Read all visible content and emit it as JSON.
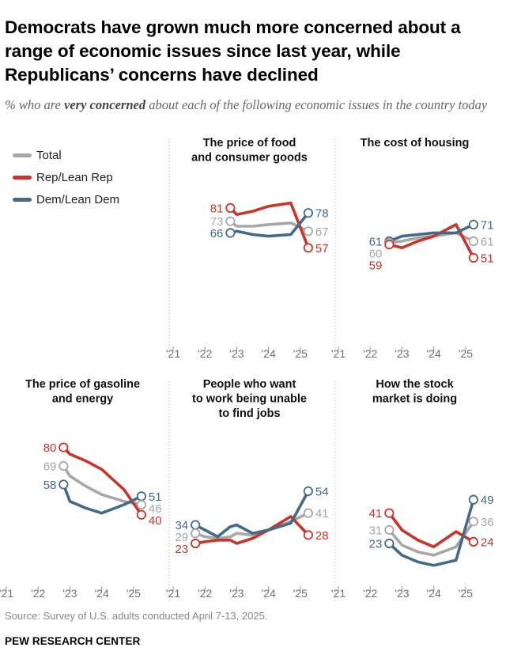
{
  "title": "Democrats have grown much more concerned about a range of economic issues since last year, while Republicans’ concerns have declined",
  "subtitle": {
    "prefix": "% who are ",
    "emphasis": "very concerned",
    "suffix": " about each of the following economic issues in the country today"
  },
  "legend": [
    {
      "label": "Total",
      "color": "#a7a7a7"
    },
    {
      "label": "Rep/Lean Rep",
      "color": "#c9352a"
    },
    {
      "label": "Dem/Lean Dem",
      "color": "#436b87"
    }
  ],
  "source": "Source: Survey of U.S. adults conducted April 7-13, 2025.",
  "brand": "PEW RESEARCH CENTER",
  "chart_data": [
    {
      "type": "line",
      "title": "The price of food and consumer goods",
      "title_lines": [
        "The price of food",
        "and consumer goods"
      ],
      "x_ticks": [
        "'21",
        "'22",
        "'23",
        "'24",
        "'25"
      ],
      "xlim": [
        2021.0,
        2025.8
      ],
      "ylim": [
        0,
        100
      ],
      "series": [
        {
          "name": "Total",
          "color": "#a7a7a7",
          "x": [
            2022.8,
            2023.0,
            2023.5,
            2024.0,
            2024.7,
            2025.25
          ],
          "values": [
            73,
            70,
            70,
            71,
            72,
            67
          ],
          "start_label": "73",
          "end_label": "67"
        },
        {
          "name": "Rep/Lean Rep",
          "color": "#c9352a",
          "x": [
            2022.8,
            2023.0,
            2023.5,
            2024.0,
            2024.7,
            2025.25
          ],
          "values": [
            81,
            77,
            79,
            82,
            84,
            57
          ],
          "start_label": "81",
          "end_label": "57"
        },
        {
          "name": "Dem/Lean Dem",
          "color": "#436b87",
          "x": [
            2022.8,
            2023.0,
            2023.5,
            2024.0,
            2024.7,
            2025.25
          ],
          "values": [
            66,
            67,
            65,
            64,
            65,
            78
          ],
          "start_label": "66",
          "end_label": "78"
        }
      ]
    },
    {
      "type": "line",
      "title": "The cost of housing",
      "title_lines": [
        "The cost of housing"
      ],
      "x_ticks": [
        "'21",
        "'22",
        "'23",
        "'24",
        "'25"
      ],
      "xlim": [
        2021.0,
        2025.8
      ],
      "ylim": [
        0,
        100
      ],
      "series": [
        {
          "name": "Total",
          "color": "#a7a7a7",
          "x": [
            2022.6,
            2023.0,
            2023.5,
            2024.0,
            2024.7,
            2025.25
          ],
          "values": [
            60,
            61,
            63,
            64,
            66,
            61
          ],
          "start_label": "60",
          "end_label": "61"
        },
        {
          "name": "Rep/Lean Rep",
          "color": "#c9352a",
          "x": [
            2022.6,
            2023.0,
            2023.5,
            2024.0,
            2024.7,
            2025.25
          ],
          "values": [
            59,
            57,
            61,
            64,
            71,
            51
          ],
          "start_label": "59",
          "end_label": "51"
        },
        {
          "name": "Dem/Lean Dem",
          "color": "#436b87",
          "x": [
            2022.6,
            2023.0,
            2023.5,
            2024.0,
            2024.7,
            2025.25
          ],
          "values": [
            61,
            64,
            65,
            66,
            66,
            71
          ],
          "start_label": "61",
          "end_label": "71"
        }
      ]
    },
    {
      "type": "line",
      "title": "The price of gasoline and energy",
      "title_lines": [
        "The price of gasoline",
        "and energy"
      ],
      "x_ticks": [
        "'21",
        "'22",
        "'23",
        "'24",
        "'25"
      ],
      "xlim": [
        2021.0,
        2025.8
      ],
      "ylim": [
        0,
        100
      ],
      "series": [
        {
          "name": "Total",
          "color": "#a7a7a7",
          "x": [
            2022.8,
            2023.0,
            2023.5,
            2024.0,
            2024.7,
            2025.25
          ],
          "values": [
            69,
            63,
            57,
            52,
            48,
            46
          ],
          "start_label": "69",
          "end_label": "46"
        },
        {
          "name": "Rep/Lean Rep",
          "color": "#c9352a",
          "x": [
            2022.8,
            2023.0,
            2023.5,
            2024.0,
            2024.7,
            2025.25
          ],
          "values": [
            80,
            76,
            72,
            67,
            55,
            40
          ],
          "start_label": "80",
          "end_label": "40"
        },
        {
          "name": "Dem/Lean Dem",
          "color": "#436b87",
          "x": [
            2022.8,
            2023.0,
            2023.5,
            2024.0,
            2024.7,
            2025.25
          ],
          "values": [
            58,
            48,
            44,
            41,
            46,
            51
          ],
          "start_label": "58",
          "end_label": "51"
        }
      ]
    },
    {
      "type": "line",
      "title": "People who want to work being unable to find jobs",
      "title_lines": [
        "People who want",
        "to work being unable",
        "to find jobs"
      ],
      "x_ticks": [
        "'21",
        "'22",
        "'23",
        "'24",
        "'25"
      ],
      "xlim": [
        2021.0,
        2025.8
      ],
      "ylim": [
        0,
        100
      ],
      "series": [
        {
          "name": "Total",
          "color": "#a7a7a7",
          "x": [
            2021.7,
            2022.0,
            2022.4,
            2022.8,
            2023.0,
            2023.5,
            2024.0,
            2024.7,
            2025.25
          ],
          "values": [
            29,
            27,
            26,
            27,
            29,
            28,
            31,
            36,
            41
          ],
          "start_label": "29",
          "end_label": "41"
        },
        {
          "name": "Rep/Lean Rep",
          "color": "#c9352a",
          "x": [
            2021.7,
            2022.0,
            2022.4,
            2022.8,
            2023.0,
            2023.5,
            2024.0,
            2024.7,
            2025.25
          ],
          "values": [
            23,
            24,
            25,
            25,
            23,
            26,
            31,
            39,
            28
          ],
          "start_label": "23",
          "end_label": "28"
        },
        {
          "name": "Dem/Lean Dem",
          "color": "#436b87",
          "x": [
            2021.7,
            2022.0,
            2022.4,
            2022.8,
            2023.0,
            2023.5,
            2024.0,
            2024.7,
            2025.25
          ],
          "values": [
            34,
            31,
            27,
            33,
            34,
            29,
            31,
            35,
            54
          ],
          "start_label": "34",
          "end_label": "54"
        }
      ]
    },
    {
      "type": "line",
      "title": "How the stock market is doing",
      "title_lines": [
        "How the stock",
        "market is doing"
      ],
      "x_ticks": [
        "'21",
        "'22",
        "'23",
        "'24",
        "'25"
      ],
      "xlim": [
        2021.0,
        2025.8
      ],
      "ylim": [
        0,
        100
      ],
      "series": [
        {
          "name": "Total",
          "color": "#a7a7a7",
          "x": [
            2022.6,
            2023.0,
            2023.5,
            2024.0,
            2024.7,
            2025.25
          ],
          "values": [
            31,
            22,
            18,
            16,
            21,
            36
          ],
          "start_label": "31",
          "end_label": "36"
        },
        {
          "name": "Rep/Lean Rep",
          "color": "#c9352a",
          "x": [
            2022.6,
            2023.0,
            2023.5,
            2024.0,
            2024.7,
            2025.25
          ],
          "values": [
            41,
            31,
            25,
            21,
            30,
            24
          ],
          "start_label": "41",
          "end_label": "24"
        },
        {
          "name": "Dem/Lean Dem",
          "color": "#436b87",
          "x": [
            2022.6,
            2023.0,
            2023.5,
            2024.0,
            2024.7,
            2025.25
          ],
          "values": [
            23,
            16,
            12,
            10,
            13,
            49
          ],
          "start_label": "23",
          "end_label": "49"
        }
      ]
    }
  ]
}
